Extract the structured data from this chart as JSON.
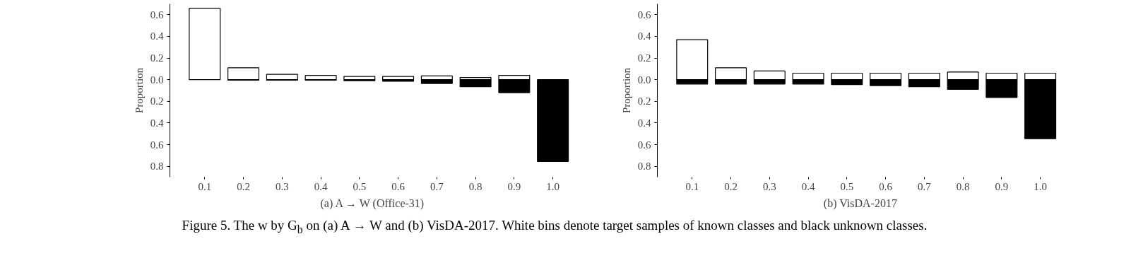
{
  "chart_data": [
    {
      "type": "bar",
      "title": "(a) A → W (Office-31)",
      "ylabel": "Proportion",
      "stacked": true,
      "categories": [
        "0.1",
        "0.2",
        "0.3",
        "0.4",
        "0.5",
        "0.6",
        "0.7",
        "0.8",
        "0.9",
        "1.0"
      ],
      "series": [
        {
          "color": "#ffffff",
          "values": [
            0.66,
            0.11,
            0.05,
            0.04,
            0.03,
            0.03,
            0.035,
            0.02,
            0.04,
            null
          ]
        },
        {
          "color": "#000000",
          "values": [
            null,
            -0.005,
            -0.005,
            -0.005,
            -0.01,
            -0.015,
            -0.035,
            -0.065,
            -0.12,
            -0.755
          ]
        }
      ],
      "ylim": [
        -0.9,
        0.7
      ],
      "yticks": [
        {
          "value": -0.8,
          "label": "0.8"
        },
        {
          "value": -0.6,
          "label": "0.6"
        },
        {
          "value": -0.4,
          "label": "0.4"
        },
        {
          "value": -0.2,
          "label": "0.2"
        },
        {
          "value": 0,
          "label": "0.0"
        },
        0.2,
        0.4,
        0.6
      ],
      "grid": false
    },
    {
      "type": "bar",
      "title": "(b) VisDA-2017",
      "ylabel": "Proportion",
      "stacked": true,
      "categories": [
        "0.1",
        "0.2",
        "0.3",
        "0.4",
        "0.5",
        "0.6",
        "0.7",
        "0.8",
        "0.9",
        "1.0"
      ],
      "series": [
        {
          "color": "#ffffff",
          "values": [
            0.37,
            0.11,
            0.08,
            0.06,
            0.06,
            0.06,
            0.06,
            0.07,
            0.06,
            0.06
          ]
        },
        {
          "color": "#000000",
          "values": [
            -0.04,
            -0.04,
            -0.04,
            -0.04,
            -0.045,
            -0.055,
            -0.065,
            -0.09,
            -0.165,
            -0.545
          ]
        }
      ],
      "ylim": [
        -0.9,
        0.7
      ],
      "yticks": [
        {
          "value": -0.8,
          "label": "0.8"
        },
        {
          "value": -0.6,
          "label": "0.6"
        },
        {
          "value": -0.4,
          "label": "0.4"
        },
        {
          "value": -0.2,
          "label": "0.2"
        },
        {
          "value": 0,
          "label": "0.0"
        },
        0.2,
        0.4,
        0.6
      ],
      "grid": false,
      "annotations": [
        "Figure 5. The w by G$_{b}$ on (a) A → W and (b) VisDA-2017. White bins denote target samples of known classes and black unknown classes."
      ]
    }
  ]
}
